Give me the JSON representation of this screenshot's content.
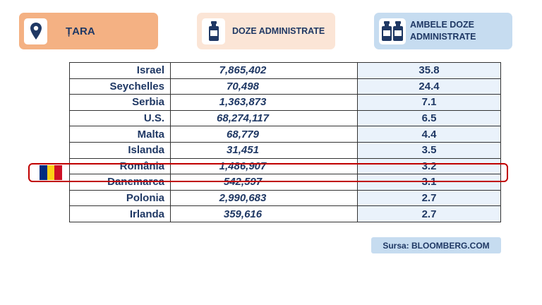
{
  "headers": {
    "country": "ȚARA",
    "doses": "DOZE ADMINISTRATE",
    "both_line1": "AMBELE DOZE",
    "both_line2": "ADMINISTRATE"
  },
  "icons": {
    "country": "location-pin-icon",
    "doses": "vaccine-vial-icon",
    "both": "two-vaccine-vials-icon"
  },
  "colors": {
    "country_header": "#f4b183",
    "doses_header": "#fbe5d6",
    "both_header": "#c6dcf0",
    "text": "#1f3864",
    "highlight": "#c00000"
  },
  "highlighted_country": "România",
  "flag": {
    "name": "romania-flag-icon",
    "colors": [
      "#002b7f",
      "#fcd116",
      "#ce1126"
    ]
  },
  "source": "Sursa: BLOOMBERG.COM",
  "chart_data": {
    "type": "table",
    "columns": [
      "ȚARA",
      "DOZE ADMINISTRATE",
      "AMBELE DOZE ADMINISTRATE"
    ],
    "rows": [
      {
        "country": "Israel",
        "doses": "7,865,402",
        "both": "35.8"
      },
      {
        "country": "Seychelles",
        "doses": "70,498",
        "both": "24.4"
      },
      {
        "country": "Serbia",
        "doses": "1,363,873",
        "both": "7.1"
      },
      {
        "country": "U.S.",
        "doses": "68,274,117",
        "both": "6.5"
      },
      {
        "country": "Malta",
        "doses": "68,779",
        "both": "4.4"
      },
      {
        "country": "Islanda",
        "doses": "31,451",
        "both": "3.5"
      },
      {
        "country": "România",
        "doses": "1,486,907",
        "both": "3.2"
      },
      {
        "country": "Danemarca",
        "doses": "542,597",
        "both": "3.1"
      },
      {
        "country": "Polonia",
        "doses": "2,990,683",
        "both": "2.7"
      },
      {
        "country": "Irlanda",
        "doses": "359,616",
        "both": "2.7"
      }
    ]
  }
}
